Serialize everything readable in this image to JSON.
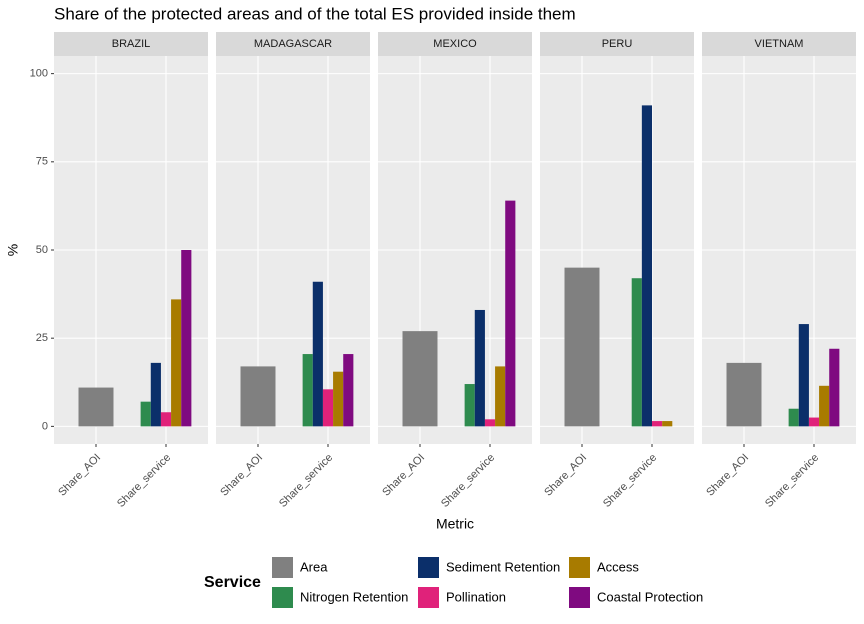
{
  "chart_data": {
    "title": "Share of the protected areas and of the total ES provided inside them",
    "xlabel": "Metric",
    "ylabel": "%",
    "legend_title": "Service",
    "series": [
      {
        "name": "Area",
        "color": "#808080"
      },
      {
        "name": "Nitrogen Retention",
        "color": "#2e8b4e"
      },
      {
        "name": "Sediment Retention",
        "color": "#0b2f6a"
      },
      {
        "name": "Pollination",
        "color": "#e0227a"
      },
      {
        "name": "Access",
        "color": "#a87b00"
      },
      {
        "name": "Coastal Protection",
        "color": "#7f0a80"
      }
    ],
    "ylim": [
      -5,
      105
    ],
    "yticks": [
      0,
      25,
      50,
      75,
      100
    ],
    "facets": [
      {
        "type": "bar",
        "title": "BRAZIL",
        "categories": [
          "Share_AOI",
          "Share_service"
        ],
        "series": [
          {
            "values": [
              11,
              null
            ]
          },
          {
            "values": [
              null,
              7
            ]
          },
          {
            "values": [
              null,
              18
            ]
          },
          {
            "values": [
              null,
              4
            ]
          },
          {
            "values": [
              null,
              36
            ]
          },
          {
            "values": [
              null,
              50
            ]
          }
        ]
      },
      {
        "type": "bar",
        "title": "MADAGASCAR",
        "categories": [
          "Share_AOI",
          "Share_service"
        ],
        "series": [
          {
            "values": [
              17,
              null
            ]
          },
          {
            "values": [
              null,
              20.5
            ]
          },
          {
            "values": [
              null,
              41
            ]
          },
          {
            "values": [
              null,
              10.5
            ]
          },
          {
            "values": [
              null,
              15.5
            ]
          },
          {
            "values": [
              null,
              20.5
            ]
          }
        ]
      },
      {
        "type": "bar",
        "title": "MEXICO",
        "categories": [
          "Share_AOI",
          "Share_service"
        ],
        "series": [
          {
            "values": [
              27,
              null
            ]
          },
          {
            "values": [
              null,
              12
            ]
          },
          {
            "values": [
              null,
              33
            ]
          },
          {
            "values": [
              null,
              2
            ]
          },
          {
            "values": [
              null,
              17
            ]
          },
          {
            "values": [
              null,
              64
            ]
          }
        ]
      },
      {
        "type": "bar",
        "title": "PERU",
        "categories": [
          "Share_AOI",
          "Share_service"
        ],
        "series": [
          {
            "values": [
              45,
              null
            ]
          },
          {
            "values": [
              null,
              42
            ]
          },
          {
            "values": [
              null,
              91
            ]
          },
          {
            "values": [
              null,
              1.5
            ]
          },
          {
            "values": [
              null,
              1.5
            ]
          },
          {
            "values": [
              null,
              null
            ]
          }
        ]
      },
      {
        "type": "bar",
        "title": "VIETNAM",
        "categories": [
          "Share_AOI",
          "Share_service"
        ],
        "series": [
          {
            "values": [
              18,
              null
            ]
          },
          {
            "values": [
              null,
              5
            ]
          },
          {
            "values": [
              null,
              29
            ]
          },
          {
            "values": [
              null,
              2.5
            ]
          },
          {
            "values": [
              null,
              11.5
            ]
          },
          {
            "values": [
              null,
              22
            ]
          }
        ]
      }
    ]
  }
}
